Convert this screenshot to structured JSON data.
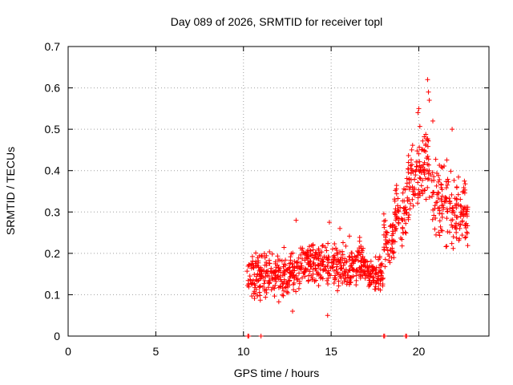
{
  "chart_data": {
    "type": "scatter",
    "title": "Day 089 of 2026, SRMTID for receiver topl",
    "xlabel": "GPS time / hours",
    "ylabel": "SRMTID / TECUs",
    "xlim": [
      0,
      24
    ],
    "ylim": [
      0,
      0.7
    ],
    "xticks": [
      "0",
      "5",
      "10",
      "15",
      "20"
    ],
    "xtick_values": [
      0,
      5,
      10,
      15,
      20
    ],
    "yticks": [
      "0",
      "0.1",
      "0.2",
      "0.3",
      "0.4",
      "0.5",
      "0.6",
      "0.7"
    ],
    "ytick_values": [
      0,
      0.1,
      0.2,
      0.3,
      0.4,
      0.5,
      0.6,
      0.7
    ],
    "grid": true,
    "marker": "+",
    "color": "#ff0000",
    "series": [
      {
        "name": "SRMTID",
        "segments": [
          {
            "x_start": 10.2,
            "x_end": 11.0,
            "base": 0.14,
            "spread": 0.07
          },
          {
            "x_start": 11.0,
            "x_end": 13.2,
            "base": 0.15,
            "spread": 0.06
          },
          {
            "x_start": 13.2,
            "x_end": 14.8,
            "base": 0.18,
            "spread": 0.06
          },
          {
            "x_start": 14.8,
            "x_end": 17.0,
            "base": 0.17,
            "spread": 0.06
          },
          {
            "x_start": 17.0,
            "x_end": 18.0,
            "base": 0.15,
            "spread": 0.05
          },
          {
            "x_start": 18.0,
            "x_end": 18.6,
            "base": 0.23,
            "spread": 0.07
          },
          {
            "x_start": 18.6,
            "x_end": 19.3,
            "base": 0.29,
            "spread": 0.09
          },
          {
            "x_start": 19.3,
            "x_end": 20.0,
            "base": 0.37,
            "spread": 0.1
          },
          {
            "x_start": 20.0,
            "x_end": 20.8,
            "base": 0.4,
            "spread": 0.12
          },
          {
            "x_start": 20.8,
            "x_end": 21.6,
            "base": 0.33,
            "spread": 0.1
          },
          {
            "x_start": 21.6,
            "x_end": 22.8,
            "base": 0.3,
            "spread": 0.1
          }
        ],
        "peaks": [
          {
            "x": 20.5,
            "y": 0.62
          },
          {
            "x": 20.55,
            "y": 0.59
          },
          {
            "x": 20.6,
            "y": 0.57
          },
          {
            "x": 20.0,
            "y": 0.55
          },
          {
            "x": 19.95,
            "y": 0.54
          },
          {
            "x": 20.8,
            "y": 0.52
          },
          {
            "x": 21.9,
            "y": 0.5
          },
          {
            "x": 13.0,
            "y": 0.28
          },
          {
            "x": 14.9,
            "y": 0.275
          },
          {
            "x": 15.5,
            "y": 0.26
          },
          {
            "x": 14.8,
            "y": 0.05
          },
          {
            "x": 12.8,
            "y": 0.06
          }
        ],
        "zero_points": [
          10.25,
          10.3,
          11.0,
          18.0,
          18.05,
          19.25,
          19.3
        ]
      }
    ]
  }
}
